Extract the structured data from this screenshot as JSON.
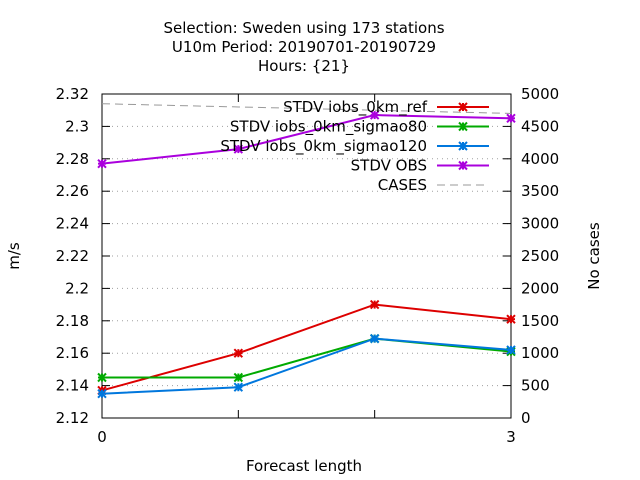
{
  "title_lines": [
    "Selection: Sweden using   173 stations",
    "U10m   Period: 20190701-20190729",
    "Hours: {21}"
  ],
  "chart_data": {
    "type": "line",
    "title": "Selection: Sweden using   173 stations U10m   Period: 20190701-20190729 Hours: {21}",
    "xlabel": "Forecast length",
    "ylabel": "m/s",
    "y2label": "No cases",
    "x": [
      0,
      1,
      2,
      3
    ],
    "x_ticks": [
      "0",
      "3"
    ],
    "xlim": [
      0,
      3
    ],
    "ylim": [
      2.12,
      2.32
    ],
    "y_ticks": [
      "2.12",
      "2.14",
      "2.16",
      "2.18",
      "2.2",
      "2.22",
      "2.24",
      "2.26",
      "2.28",
      "2.3",
      "2.32"
    ],
    "y2lim": [
      0,
      5000
    ],
    "y2_ticks": [
      "0",
      "500",
      "1000",
      "1500",
      "2000",
      "2500",
      "3000",
      "3500",
      "4000",
      "4500",
      "5000"
    ],
    "grid": true,
    "legend_position": "top-right",
    "series": [
      {
        "name": "STDV iobs_0km_ref",
        "axis": "left",
        "color": "#dd0000",
        "values": [
          2.137,
          2.16,
          2.19,
          2.181
        ]
      },
      {
        "name": "STDV iobs_0km_sigmao80",
        "axis": "left",
        "color": "#00aa00",
        "values": [
          2.145,
          2.145,
          2.169,
          2.161
        ]
      },
      {
        "name": "STDV iobs_0km_sigmao120",
        "axis": "left",
        "color": "#0077dd",
        "values": [
          2.135,
          2.139,
          2.169,
          2.162
        ]
      },
      {
        "name": "STDV OBS",
        "axis": "left",
        "color": "#aa00dd",
        "values": [
          2.277,
          2.286,
          2.307,
          2.305
        ]
      },
      {
        "name": "CASES",
        "axis": "right",
        "color": "#999999",
        "dashed": true,
        "values": [
          4850,
          4800,
          4750,
          4700
        ]
      }
    ]
  }
}
